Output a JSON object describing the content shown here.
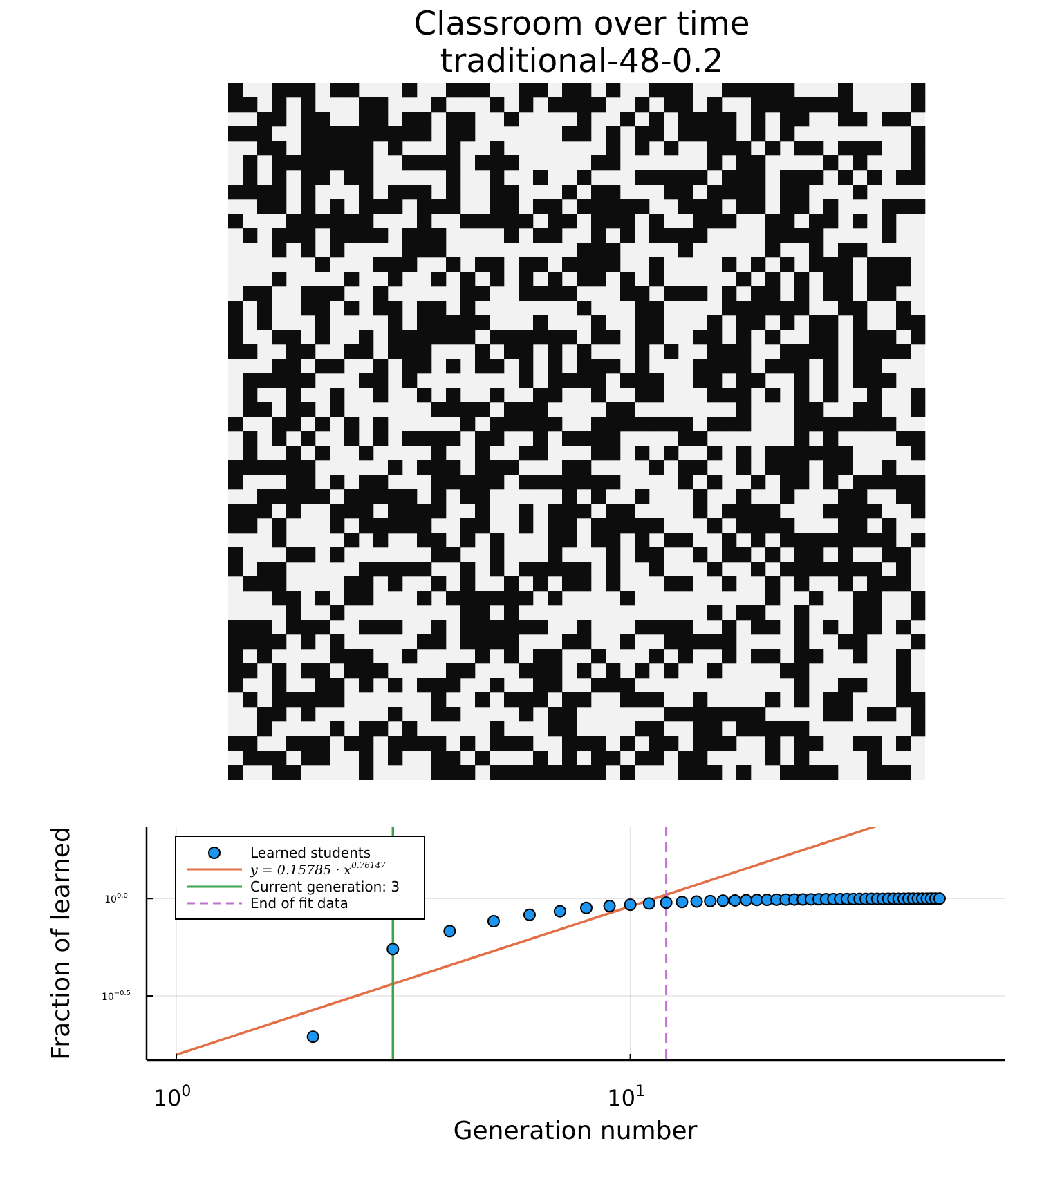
{
  "heatmap": {
    "title_line1": "Classroom over time",
    "title_line2": "traditional-48-0.2",
    "grid_size": 48,
    "colors": {
      "learned": "#0d0d0d",
      "not_learned": "#f2f2f2"
    }
  },
  "chart_data": {
    "type": "scatter",
    "xlabel": "Generation number",
    "ylabel": "Fraction of learned",
    "xscale": "log10",
    "yscale": "log10",
    "xlim": [
      0.86,
      67
    ],
    "ylim_log10": [
      -0.83,
      0.37
    ],
    "x_ticks": [
      {
        "value": 1,
        "base": "10",
        "exp": "0"
      },
      {
        "value": 10,
        "base": "10",
        "exp": "1"
      }
    ],
    "y_ticks": [
      {
        "log10": 0,
        "base": "10",
        "exp": "0.0"
      },
      {
        "log10": -0.5,
        "base": "10",
        "exp": "−0.5"
      }
    ],
    "grid": true,
    "legend_position": "top-left",
    "series": [
      {
        "name": "Learned students",
        "kind": "scatter",
        "color": "#1e96f0",
        "x": [
          2,
          3,
          4,
          5,
          6,
          7,
          8,
          9,
          10,
          11,
          12,
          13,
          14,
          15,
          16,
          17,
          18,
          19,
          20,
          21,
          22,
          23,
          24,
          25,
          26,
          27,
          28,
          29,
          30,
          31,
          32,
          33,
          34,
          35,
          36,
          37,
          38,
          39,
          40,
          41,
          42,
          43,
          44,
          45,
          46,
          47,
          48
        ],
        "y": [
          0.195,
          0.55,
          0.68,
          0.765,
          0.825,
          0.86,
          0.895,
          0.915,
          0.93,
          0.943,
          0.953,
          0.96,
          0.966,
          0.971,
          0.975,
          0.978,
          0.981,
          0.983,
          0.985,
          0.987,
          0.988,
          0.989,
          0.99,
          0.991,
          0.992,
          0.993,
          0.994,
          0.994,
          0.995,
          0.995,
          0.996,
          0.996,
          0.997,
          0.997,
          0.997,
          0.998,
          0.998,
          0.998,
          0.998,
          0.999,
          0.999,
          0.999,
          0.999,
          0.999,
          1.0,
          1.0,
          1.0
        ]
      },
      {
        "name": "y = 0.15785 · x^0.76147",
        "kind": "fit",
        "color": "#e26f46",
        "a": 0.15785,
        "b": 0.76147,
        "x_range": [
          1,
          48
        ]
      },
      {
        "name": "Current generation: 3",
        "kind": "vline",
        "color": "#3da44d",
        "x": 3
      },
      {
        "name": "End of fit data",
        "kind": "vline_dashed",
        "color": "#c271d2",
        "x": 12
      }
    ],
    "legend": {
      "learned_label": "Learned students",
      "fit_prefix": "y = 0.15785 · x",
      "fit_exp": "0.76147",
      "current_label": "Current generation: 3",
      "end_label": "End of fit data"
    }
  }
}
